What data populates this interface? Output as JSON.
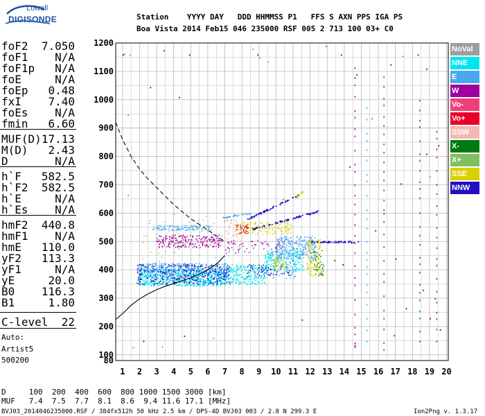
{
  "logo": {
    "top": "Lowell",
    "bottom": "DIGISONDE"
  },
  "header": {
    "row1": "Station    YYYY DAY   DDD HHMMSS P1   FFS S AXN PPS IGA PS",
    "row2": "Boa Vista 2014 Feb15 046 235000 RSF 005 2 713 100 03+ C0"
  },
  "params": [
    {
      "key": "foF2",
      "value": "7.050"
    },
    {
      "key": "foF1",
      "value": "N/A"
    },
    {
      "key": "foF1p",
      "value": "N/A"
    },
    {
      "key": "foE",
      "value": "N/A"
    },
    {
      "key": "foEp",
      "value": "0.48"
    },
    {
      "key": "fxI",
      "value": "7.40"
    },
    {
      "key": "foEs",
      "value": "N/A"
    },
    {
      "key": "fmin",
      "value": "6.60"
    },
    {
      "key": "MUF(D)",
      "value": "17.13"
    },
    {
      "key": "M(D)",
      "value": "2.43"
    },
    {
      "key": "D",
      "value": "N/A"
    },
    {
      "key": "h`F",
      "value": "582.5"
    },
    {
      "key": "h`F2",
      "value": "582.5"
    },
    {
      "key": "h`E",
      "value": "N/A"
    },
    {
      "key": "h`Es",
      "value": "N/A"
    },
    {
      "key": "hmF2",
      "value": "440.8"
    },
    {
      "key": "hmF1",
      "value": "N/A"
    },
    {
      "key": "hmE",
      "value": "110.0"
    },
    {
      "key": "yF2",
      "value": "113.3"
    },
    {
      "key": "yF1",
      "value": "N/A"
    },
    {
      "key": "yE",
      "value": "20.0"
    },
    {
      "key": "B0",
      "value": "116.3"
    },
    {
      "key": "B1",
      "value": "1.80"
    },
    {
      "key": "C-level",
      "value": "22"
    }
  ],
  "auto": {
    "line1": "Auto:",
    "line2": "Artist5",
    "line3": "500200"
  },
  "legend": [
    {
      "label": "NoVal",
      "color": "#9e9e9e",
      "text": "#ffffff"
    },
    {
      "label": "NNE",
      "color": "#00e5ee",
      "text": "#ffffff"
    },
    {
      "label": "E",
      "color": "#4aa8f0",
      "text": "#ffffff"
    },
    {
      "label": "W",
      "color": "#a0009e",
      "text": "#ffffff"
    },
    {
      "label": "Vo-",
      "color": "#f0407a",
      "text": "#ffffff"
    },
    {
      "label": "Vo+",
      "color": "#e8002a",
      "text": "#ffffff"
    },
    {
      "label": "SSW",
      "color": "#f4b8b0",
      "text": "#ffffff"
    },
    {
      "label": "X-",
      "color": "#007a10",
      "text": "#ffffff"
    },
    {
      "label": "X+",
      "color": "#7fbf60",
      "text": "#ffffff"
    },
    {
      "label": "SSE",
      "color": "#d8d000",
      "text": "#ffffff"
    },
    {
      "label": "NNW",
      "color": "#2010c0",
      "text": "#ffffff"
    }
  ],
  "footer": {
    "d_row": "D     100  200  400  600  800 1000 1500 3000 [km]",
    "muf_row": "MUF   7.4  7.5  7.7  8.1  8.6  9.4 11.6 17.1 [MHz]",
    "info": "BVJ03_2014046235000.RSF / 384fx512h 50 kHz 2.5 km / DPS-4D BVJ03 003 / 2.8 N 299.3 E",
    "version": "Ion2Png v. 1.3.17"
  },
  "chart_data": {
    "type": "scatter",
    "xlim": [
      0.6,
      20.1
    ],
    "ylim": [
      80,
      1200
    ],
    "xticks": [
      1,
      2,
      3,
      4,
      5,
      6,
      7,
      8,
      9,
      10,
      11,
      12,
      13,
      14,
      15,
      16,
      17,
      18,
      19,
      20
    ],
    "yticks": [
      100,
      200,
      300,
      400,
      500,
      600,
      700,
      800,
      900,
      1000,
      1100,
      1200
    ],
    "ytick_labels": [
      "100",
      "200",
      "300",
      "400",
      "500",
      "600",
      "700",
      "800",
      "900",
      "1000",
      "1100",
      "1200"
    ],
    "y_bottom_label": "80",
    "grid": true,
    "profile_curve": {
      "x": [
        0.6,
        1.0,
        1.5,
        2.0,
        2.5,
        3.0,
        3.5,
        4.0,
        4.5,
        5.0,
        5.5,
        6.0,
        6.5,
        7.0
      ],
      "y": [
        225,
        245,
        275,
        298,
        315,
        330,
        342,
        352,
        362,
        372,
        385,
        400,
        420,
        450
      ]
    },
    "dashed_curve": {
      "x": [
        0.6,
        1.0,
        1.5,
        2.0,
        2.5,
        3.0,
        3.5,
        4.0,
        4.5,
        5.0,
        5.5,
        6.0,
        6.5,
        7.0
      ],
      "y": [
        920,
        860,
        800,
        755,
        720,
        690,
        660,
        630,
        605,
        580,
        560,
        540,
        520,
        500
      ]
    },
    "clusters": [
      {
        "class": "NNE",
        "x": [
          1.9,
          7.1
        ],
        "y": [
          345,
          405
        ],
        "n": 700
      },
      {
        "class": "NNE",
        "x": [
          7.0,
          9.4
        ],
        "y": [
          350,
          420
        ],
        "n": 250
      },
      {
        "class": "NNE",
        "x": [
          9.3,
          11.6
        ],
        "y": [
          395,
          470
        ],
        "n": 200
      },
      {
        "class": "E",
        "x": [
          1.9,
          7.2
        ],
        "y": [
          375,
          425
        ],
        "n": 450
      },
      {
        "class": "E",
        "x": [
          2.8,
          6.2
        ],
        "y": [
          540,
          558
        ],
        "n": 120
      },
      {
        "class": "E",
        "x": [
          10.0,
          12.3
        ],
        "y": [
          440,
          520
        ],
        "n": 300
      },
      {
        "class": "E",
        "x": [
          9.4,
          11.2
        ],
        "y": [
          370,
          460
        ],
        "n": 80
      },
      {
        "class": "W",
        "x": [
          3.0,
          6.8
        ],
        "y": [
          480,
          525
        ],
        "n": 220
      },
      {
        "class": "W",
        "x": [
          7.0,
          10.5
        ],
        "y": [
          460,
          505
        ],
        "n": 60
      },
      {
        "class": "NNW",
        "x": [
          1.8,
          7.3
        ],
        "y": [
          350,
          420
        ],
        "n": 320
      },
      {
        "class": "NNW",
        "x": [
          8.3,
          10.8
        ],
        "y": [
          380,
          420
        ],
        "n": 60
      },
      {
        "class": "SSE",
        "x": [
          7.6,
          10.9
        ],
        "y": [
          525,
          570
        ],
        "n": 150
      },
      {
        "class": "SSE",
        "x": [
          11.8,
          12.6
        ],
        "y": [
          380,
          510
        ],
        "n": 120
      },
      {
        "class": "SSE",
        "x": [
          9.8,
          10.6
        ],
        "y": [
          405,
          440
        ],
        "n": 40
      },
      {
        "class": "Vo+",
        "x": [
          7.6,
          8.4
        ],
        "y": [
          530,
          560
        ],
        "n": 35
      },
      {
        "class": "SSW",
        "x": [
          7.0,
          8.0
        ],
        "y": [
          500,
          580
        ],
        "n": 40
      },
      {
        "class": "X-",
        "x": [
          12.0,
          12.8
        ],
        "y": [
          380,
          470
        ],
        "n": 40
      },
      {
        "class": "X+",
        "x": [
          2.0,
          8.0
        ],
        "y": [
          420,
          600
        ],
        "n": 60
      }
    ],
    "traces": [
      {
        "class": "NNW",
        "x0": 8.3,
        "y0": 580,
        "x1": 11.4,
        "y1": 668,
        "n": 60
      },
      {
        "class": "NNW",
        "x0": 8.6,
        "y0": 545,
        "x1": 12.6,
        "y1": 610,
        "n": 70
      },
      {
        "class": "E",
        "x0": 6.8,
        "y0": 585,
        "x1": 8.5,
        "y1": 602,
        "n": 30
      },
      {
        "class": "NNW",
        "x0": 12.0,
        "y0": 500,
        "x1": 14.8,
        "y1": 500,
        "n": 50
      },
      {
        "class": "SSE",
        "x0": 11.0,
        "y0": 648,
        "x1": 11.6,
        "y1": 680,
        "n": 15
      }
    ],
    "scattered_points": [
      {
        "class": "E",
        "x": 1.1,
        "y": 1163
      },
      {
        "class": "E",
        "x": 1.4,
        "y": 1160
      },
      {
        "class": "NNW",
        "x": 1.0,
        "y": 1160
      },
      {
        "class": "E",
        "x": 1.3,
        "y": 948
      },
      {
        "class": "E",
        "x": 1.5,
        "y": 795
      },
      {
        "class": "E",
        "x": 1.3,
        "y": 665
      },
      {
        "class": "W",
        "x": 3.4,
        "y": 1175
      },
      {
        "class": "W",
        "x": 4.3,
        "y": 1010
      },
      {
        "class": "X-",
        "x": 2.6,
        "y": 1045
      },
      {
        "class": "W",
        "x": 4.9,
        "y": 1160
      },
      {
        "class": "E",
        "x": 8.6,
        "y": 1180
      },
      {
        "class": "W",
        "x": 8.9,
        "y": 1160
      },
      {
        "class": "E",
        "x": 9.0,
        "y": 1150
      },
      {
        "class": "X+",
        "x": 9.5,
        "y": 1135
      },
      {
        "class": "Vo-",
        "x": 12.9,
        "y": 1190
      },
      {
        "class": "W",
        "x": 13.8,
        "y": 1160
      },
      {
        "class": "X-",
        "x": 14.7,
        "y": 1090
      },
      {
        "class": "W",
        "x": 16.7,
        "y": 1125
      },
      {
        "class": "E",
        "x": 17.4,
        "y": 1155
      },
      {
        "class": "W",
        "x": 18.3,
        "y": 1160
      },
      {
        "class": "X-",
        "x": 18.8,
        "y": 1110
      },
      {
        "class": "Vo-",
        "x": 15.6,
        "y": 935
      },
      {
        "class": "W",
        "x": 18.8,
        "y": 810
      },
      {
        "class": "X+",
        "x": 19.0,
        "y": 730
      },
      {
        "class": "W",
        "x": 19.5,
        "y": 840
      },
      {
        "class": "X-",
        "x": 16.3,
        "y": 600
      },
      {
        "class": "W",
        "x": 17.3,
        "y": 705
      },
      {
        "class": "W",
        "x": 15.8,
        "y": 540
      },
      {
        "class": "X-",
        "x": 17.0,
        "y": 440
      },
      {
        "class": "W",
        "x": 18.6,
        "y": 330
      },
      {
        "class": "X-",
        "x": 19.3,
        "y": 300
      },
      {
        "class": "W",
        "x": 19.0,
        "y": 230
      },
      {
        "class": "X-",
        "x": 19.6,
        "y": 190
      },
      {
        "class": "W",
        "x": 14.6,
        "y": 143
      },
      {
        "class": "W",
        "x": 14.6,
        "y": 135
      },
      {
        "class": "X-",
        "x": 16.9,
        "y": 170
      },
      {
        "class": "W",
        "x": 2.2,
        "y": 150
      },
      {
        "class": "X+",
        "x": 3.3,
        "y": 130
      },
      {
        "class": "W",
        "x": 4.6,
        "y": 168
      },
      {
        "class": "E",
        "x": 1.6,
        "y": 128
      },
      {
        "class": "X-",
        "x": 13.4,
        "y": 435
      },
      {
        "class": "W",
        "x": 13.9,
        "y": 420
      },
      {
        "class": "Vo-",
        "x": 11.7,
        "y": 475
      },
      {
        "class": "X+",
        "x": 10.4,
        "y": 650
      },
      {
        "class": "W",
        "x": 14.3,
        "y": 765
      },
      {
        "class": "X-",
        "x": 11.5,
        "y": 225
      },
      {
        "class": "E",
        "x": 6.3,
        "y": 160
      },
      {
        "class": "W",
        "x": 17.6,
        "y": 265
      }
    ],
    "vertical_dashed_traces": [
      {
        "class": "W",
        "x": 14.6,
        "y0": 130,
        "y1": 1150
      },
      {
        "class": "X-",
        "x": 16.3,
        "y0": 120,
        "y1": 1100
      },
      {
        "class": "X-",
        "x": 18.4,
        "y0": 150,
        "y1": 1000
      },
      {
        "class": "W",
        "x": 19.4,
        "y0": 150,
        "y1": 900
      },
      {
        "class": "E",
        "x": 15.3,
        "y0": 150,
        "y1": 1000
      }
    ]
  }
}
